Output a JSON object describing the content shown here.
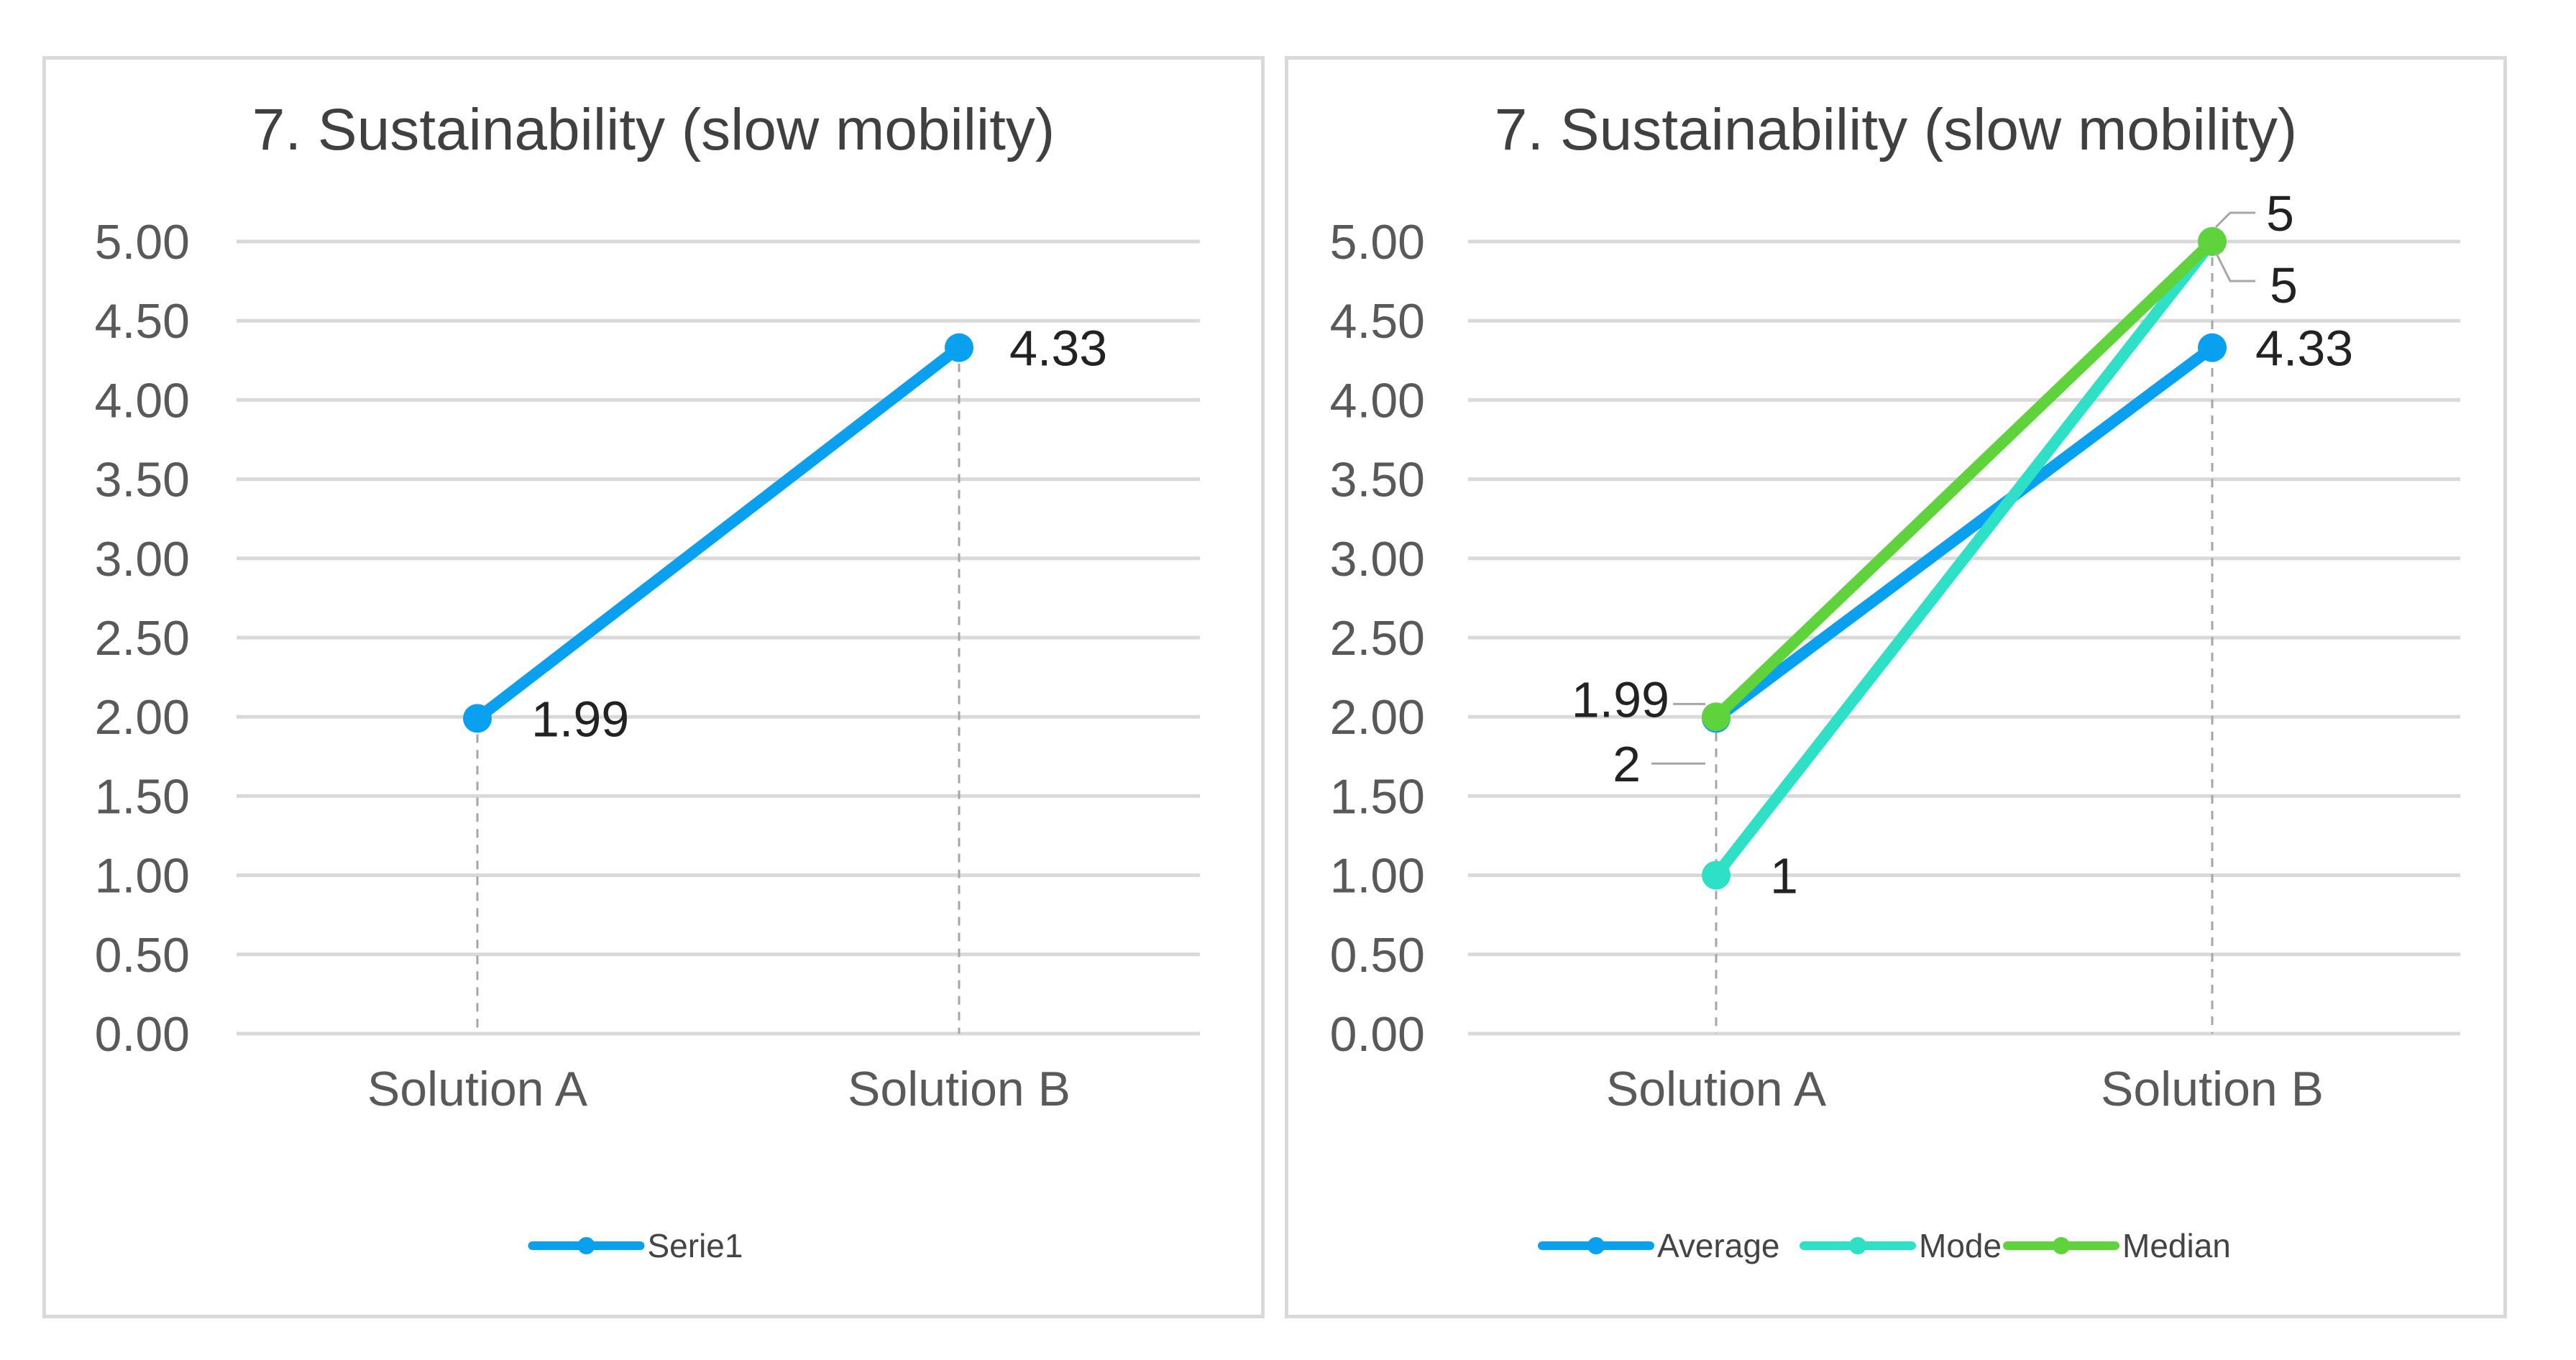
{
  "chart_data": [
    {
      "type": "line",
      "title": "7. Sustainability (slow mobility)",
      "categories": [
        "Solution A",
        "Solution B"
      ],
      "ylim": [
        0,
        5
      ],
      "yticks": [
        "0.00",
        "0.50",
        "1.00",
        "1.50",
        "2.00",
        "2.50",
        "3.00",
        "3.50",
        "4.00",
        "4.50",
        "5.00"
      ],
      "drop_lines": true,
      "legend_position": "bottom",
      "series": [
        {
          "name": "Serie1",
          "color": "#0aa0f0",
          "values": [
            1.99,
            4.33
          ],
          "labels": [
            "1.99",
            "4.33"
          ]
        }
      ]
    },
    {
      "type": "line",
      "title": "7. Sustainability (slow mobility)",
      "categories": [
        "Solution A",
        "Solution B"
      ],
      "ylim": [
        0,
        5
      ],
      "yticks": [
        "0.00",
        "0.50",
        "1.00",
        "1.50",
        "2.00",
        "2.50",
        "3.00",
        "3.50",
        "4.00",
        "4.50",
        "5.00"
      ],
      "drop_lines": true,
      "legend_position": "bottom",
      "series": [
        {
          "name": "Average",
          "color": "#0aa0f0",
          "values": [
            1.99,
            4.33
          ],
          "labels": [
            "1.99",
            "4.33"
          ]
        },
        {
          "name": "Mode",
          "color": "#2ee0c6",
          "values": [
            1,
            5
          ],
          "labels": [
            "1",
            "5"
          ]
        },
        {
          "name": "Median",
          "color": "#5fd33c",
          "values": [
            2,
            5
          ],
          "labels": [
            "2",
            "5"
          ]
        }
      ]
    }
  ]
}
